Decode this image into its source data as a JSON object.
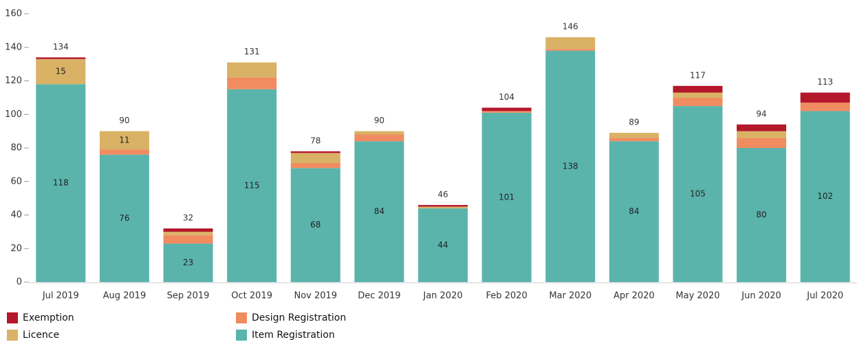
{
  "chart_data": {
    "type": "stacked_bar",
    "categories": [
      "Jul 2019",
      "Aug 2019",
      "Sep 2019",
      "Oct 2019",
      "Nov 2019",
      "Dec 2019",
      "Jan 2020",
      "Feb 2020",
      "Mar 2020",
      "Apr 2020",
      "May 2020",
      "Jun 2020",
      "Jul 2020"
    ],
    "series": [
      {
        "name": "Item Registration",
        "color": "#5ab4ac",
        "values": [
          118,
          76,
          23,
          115,
          68,
          84,
          44,
          101,
          138,
          84,
          105,
          80,
          102
        ]
      },
      {
        "name": "Design Registration",
        "color": "#f08c60",
        "values": [
          0,
          3,
          5,
          7,
          3,
          4,
          0,
          1,
          1,
          2,
          5,
          6,
          5
        ]
      },
      {
        "name": "Licence",
        "color": "#d9b265",
        "values": [
          15,
          11,
          2,
          9,
          6,
          2,
          1,
          0,
          7,
          3,
          3,
          4,
          0
        ]
      },
      {
        "name": "Exemption",
        "color": "#b5172b",
        "values": [
          1,
          0,
          2,
          0,
          1,
          0,
          1,
          2,
          0,
          0,
          4,
          4,
          6
        ]
      }
    ],
    "totals": [
      134,
      90,
      32,
      131,
      78,
      90,
      46,
      104,
      146,
      89,
      117,
      94,
      113
    ],
    "ylim": [
      0,
      160
    ],
    "yticks": [
      0,
      20,
      40,
      60,
      80,
      100,
      120,
      140,
      160
    ]
  }
}
